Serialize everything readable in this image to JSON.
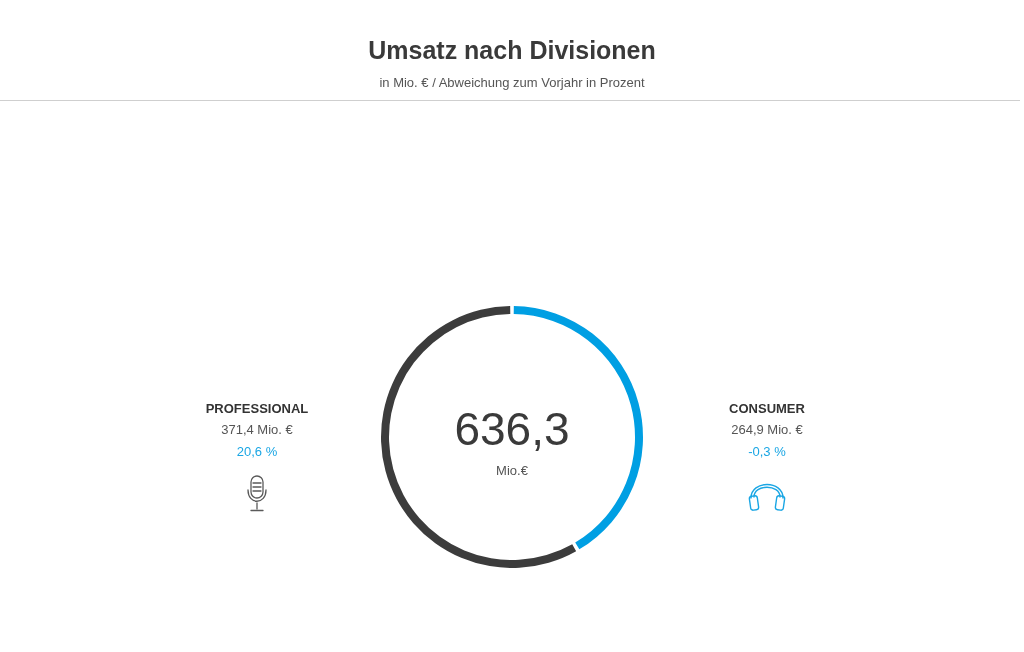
{
  "chart_data": {
    "type": "donut",
    "title": "Umsatz nach Divisionen",
    "subtitle": "in Mio. € / Abweichung zum Vorjahr in Prozent",
    "categories": [
      "PROFESSIONAL",
      "CONSUMER"
    ],
    "values": [
      371.4,
      264.9
    ],
    "colors": [
      "#3c3c3c",
      "#009fe3"
    ],
    "value_labels": [
      "371,4 Mio. €",
      "264,9 Mio. €"
    ],
    "annotations": [
      "636,3",
      "Mio.€",
      "20,6 %",
      "-0,3 %"
    ]
  }
}
